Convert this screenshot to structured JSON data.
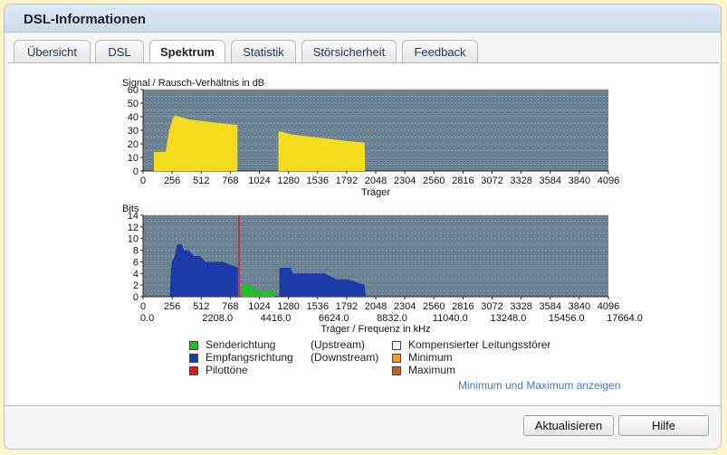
{
  "window": {
    "title": "DSL-Informationen"
  },
  "tabs": [
    {
      "label": "Übersicht",
      "active": false
    },
    {
      "label": "DSL",
      "active": false
    },
    {
      "label": "Spektrum",
      "active": true
    },
    {
      "label": "Statistik",
      "active": false
    },
    {
      "label": "Störsicherheit",
      "active": false
    },
    {
      "label": "Feedback",
      "active": false
    }
  ],
  "chart_data": [
    {
      "type": "area",
      "title": "Signal / Rausch-Verhältnis in dB",
      "xlabel": "Träger",
      "xlim": [
        0,
        4096
      ],
      "ylim": [
        0,
        60
      ],
      "x_ticks": [
        0,
        256,
        512,
        768,
        1024,
        1280,
        1536,
        1792,
        2048,
        2304,
        2560,
        2816,
        3072,
        3328,
        3584,
        3840,
        4096
      ],
      "y_ticks": [
        0,
        10,
        20,
        30,
        40,
        50,
        60
      ],
      "y_ticks_minor": [
        5,
        15,
        25,
        35,
        45,
        55
      ],
      "color": "#f3dc1e",
      "segments": [
        [
          [
            96,
            0
          ],
          [
            96,
            13
          ],
          [
            100,
            14
          ],
          [
            200,
            14
          ],
          [
            230,
            30
          ],
          [
            260,
            38
          ],
          [
            280,
            41
          ],
          [
            320,
            40
          ],
          [
            400,
            38
          ],
          [
            500,
            37
          ],
          [
            600,
            36
          ],
          [
            700,
            35
          ],
          [
            820,
            34
          ],
          [
            830,
            34
          ],
          [
            830,
            0
          ]
        ],
        [
          [
            1192,
            0
          ],
          [
            1192,
            29
          ],
          [
            1220,
            29
          ],
          [
            1300,
            27
          ],
          [
            1400,
            26
          ],
          [
            1500,
            25
          ],
          [
            1600,
            24
          ],
          [
            1700,
            23
          ],
          [
            1800,
            22
          ],
          [
            1950,
            21
          ],
          [
            1955,
            0
          ]
        ]
      ]
    },
    {
      "type": "area",
      "title": "Bits",
      "xlabel": "Träger / Frequenz in kHz",
      "xlim": [
        0,
        4096
      ],
      "ylim": [
        0,
        14
      ],
      "x_ticks": [
        0,
        256,
        512,
        768,
        1024,
        1280,
        1536,
        1792,
        2048,
        2304,
        2560,
        2816,
        3072,
        3328,
        3584,
        3840,
        4096
      ],
      "freq_ticks": [
        "0.0",
        "2208.0",
        "4416.0",
        "6624.0",
        "8832.0",
        "11040.0",
        "13248.0",
        "15456.0",
        "17664.0"
      ],
      "y_ticks": [
        0,
        2,
        4,
        6,
        8,
        10,
        12,
        14
      ],
      "y_ticks_minor": [
        1,
        3,
        5,
        7,
        9,
        11,
        13
      ],
      "pilot_tone_carrier": 845,
      "series": [
        {
          "name": "Empfangsrichtung (Downstream)",
          "color": "#1b3ca8",
          "segments": [
            [
              [
                235,
                0
              ],
              [
                245,
                4
              ],
              [
                255,
                6
              ],
              [
                280,
                7
              ],
              [
                290,
                8
              ],
              [
                300,
                9
              ],
              [
                340,
                9
              ],
              [
                360,
                8
              ],
              [
                400,
                8
              ],
              [
                450,
                7
              ],
              [
                500,
                7
              ],
              [
                550,
                6
              ],
              [
                600,
                6
              ],
              [
                700,
                6
              ],
              [
                835,
                5
              ],
              [
                835,
                0
              ]
            ],
            [
              [
                1200,
                0
              ],
              [
                1200,
                5
              ],
              [
                1300,
                5
              ],
              [
                1320,
                4
              ],
              [
                1500,
                4
              ],
              [
                1600,
                4
              ],
              [
                1700,
                3
              ],
              [
                1800,
                3
              ],
              [
                1950,
                2
              ],
              [
                1960,
                0
              ]
            ]
          ]
        },
        {
          "name": "Senderichtung (Upstream)",
          "color": "#22c122",
          "segments": [
            [
              [
                865,
                0
              ],
              [
                870,
                2
              ],
              [
                950,
                2
              ],
              [
                1000,
                1
              ],
              [
                1150,
                1
              ],
              [
                1160,
                0
              ]
            ]
          ]
        }
      ]
    }
  ],
  "legend": [
    {
      "label": "Senderichtung",
      "note": "(Upstream)",
      "color": "#22c122"
    },
    {
      "label": "Empfangsrichtung",
      "note": "(Downstream)",
      "color": "#1b3ca8"
    },
    {
      "label": "Pilottöne",
      "note": "",
      "color": "#e0162a"
    },
    {
      "label": "Kompensierter Leitungsstörer",
      "color": "#f7f7f7"
    },
    {
      "label": "Minimum",
      "color": "#f39a26"
    },
    {
      "label": "Maximum",
      "color": "#b9681e"
    }
  ],
  "link": {
    "label": "Minimum und Maximum anzeigen"
  },
  "buttons": {
    "refresh": "Aktualisieren",
    "help": "Hilfe"
  }
}
